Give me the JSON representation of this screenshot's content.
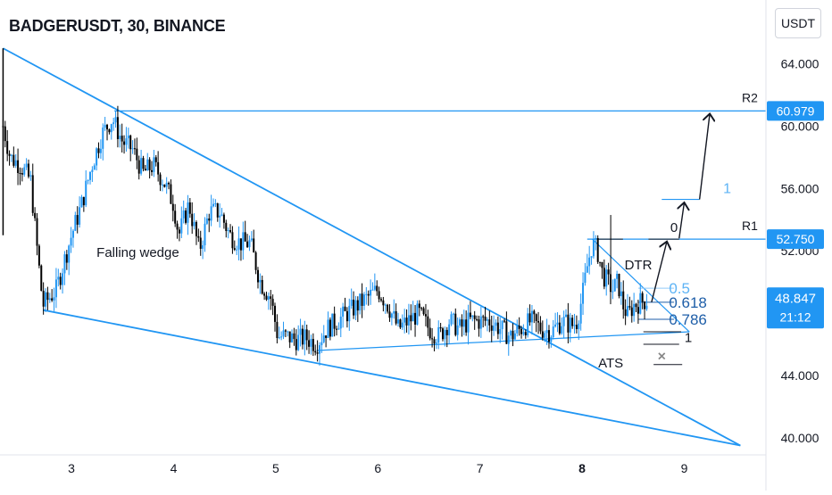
{
  "header": {
    "title": "BADGERUSDT, 30, BINANCE",
    "currency": "USDT"
  },
  "colors": {
    "line": "#2196f3",
    "label_bg": "#2196f3",
    "up": "#2196f3",
    "down": "#000000",
    "text": "#131722",
    "axis_text": "#131722",
    "fib_text": "#5db3f5",
    "fib_text_dark": "#1e5ea8"
  },
  "chart_data": {
    "type": "candlestick",
    "xlim": [
      2.3,
      9.8
    ],
    "ylim": [
      38.9,
      68.1
    ],
    "x_ticks": [
      {
        "value": 3,
        "label": "3"
      },
      {
        "value": 4,
        "label": "4"
      },
      {
        "value": 5,
        "label": "5"
      },
      {
        "value": 6,
        "label": "6"
      },
      {
        "value": 7,
        "label": "7"
      },
      {
        "value": 8,
        "label": "8",
        "bold": true
      },
      {
        "value": 9,
        "label": "9"
      }
    ],
    "y_ticks": [
      {
        "value": 40,
        "label": "40.000"
      },
      {
        "value": 44,
        "label": "44.000"
      },
      {
        "value": 48,
        "label": "48.000"
      },
      {
        "value": 52,
        "label": "52.000"
      },
      {
        "value": 56,
        "label": "56.000"
      },
      {
        "value": 60,
        "label": "60.000"
      },
      {
        "value": 64,
        "label": "64.000"
      }
    ],
    "price_labels": [
      {
        "value": 60.979,
        "label": "60.979"
      },
      {
        "value": 52.75,
        "label": "52.750"
      }
    ],
    "current_price": {
      "value": 48.847,
      "label": "48.847",
      "countdown": "21:12"
    },
    "price_path": [
      [
        2.33,
        60
      ],
      [
        2.4,
        58
      ],
      [
        2.5,
        57.5
      ],
      [
        2.6,
        56.5
      ],
      [
        2.65,
        53
      ],
      [
        2.72,
        48.5
      ],
      [
        2.85,
        49.5
      ],
      [
        3.0,
        53
      ],
      [
        3.1,
        55
      ],
      [
        3.2,
        57.5
      ],
      [
        3.3,
        59.5
      ],
      [
        3.4,
        60.5
      ],
      [
        3.5,
        59
      ],
      [
        3.6,
        58.5
      ],
      [
        3.7,
        57
      ],
      [
        3.8,
        57.5
      ],
      [
        3.9,
        56.5
      ],
      [
        4.0,
        55
      ],
      [
        4.05,
        53
      ],
      [
        4.15,
        55
      ],
      [
        4.25,
        52
      ],
      [
        4.35,
        54.5
      ],
      [
        4.45,
        54.5
      ],
      [
        4.55,
        53
      ],
      [
        4.65,
        52.5
      ],
      [
        4.75,
        52.5
      ],
      [
        4.85,
        50
      ],
      [
        4.95,
        49
      ],
      [
        5.02,
        46.5
      ],
      [
        5.1,
        46.5
      ],
      [
        5.2,
        46.3
      ],
      [
        5.3,
        46.4
      ],
      [
        5.4,
        46.0
      ],
      [
        5.5,
        47
      ],
      [
        5.6,
        47.5
      ],
      [
        5.7,
        48
      ],
      [
        5.8,
        48.5
      ],
      [
        5.9,
        49
      ],
      [
        6.0,
        49.5
      ],
      [
        6.1,
        48.5
      ],
      [
        6.2,
        47
      ],
      [
        6.3,
        47.5
      ],
      [
        6.4,
        48
      ],
      [
        6.5,
        47
      ],
      [
        6.6,
        46.5
      ],
      [
        6.7,
        47.5
      ],
      [
        6.8,
        47
      ],
      [
        6.9,
        47.5
      ],
      [
        7.0,
        47.5
      ],
      [
        7.1,
        47.5
      ],
      [
        7.2,
        47
      ],
      [
        7.3,
        46.5
      ],
      [
        7.4,
        47
      ],
      [
        7.5,
        47.5
      ],
      [
        7.6,
        47
      ],
      [
        7.7,
        46.8
      ],
      [
        7.8,
        47.5
      ],
      [
        7.9,
        47.2
      ],
      [
        7.95,
        47.5
      ],
      [
        8.0,
        49
      ],
      [
        8.05,
        51
      ],
      [
        8.1,
        52.5
      ],
      [
        8.15,
        52
      ],
      [
        8.2,
        50.5
      ],
      [
        8.3,
        49.5
      ],
      [
        8.35,
        50
      ],
      [
        8.4,
        48.5
      ],
      [
        8.45,
        47.8
      ],
      [
        8.5,
        48.5
      ],
      [
        8.6,
        48.8
      ],
      [
        8.65,
        48.85
      ]
    ],
    "annotations": {
      "R1": "R1",
      "R2": "R2",
      "falling_wedge": "Falling wedge",
      "dtr": "DTR",
      "ats": "ATS",
      "fib_levels": [
        {
          "label": "0.5",
          "value": 49.6,
          "light": true
        },
        {
          "label": "0.618",
          "value": 48.7
        },
        {
          "label": "0.786",
          "value": 47.6
        }
      ],
      "fib_one_bottom": "1",
      "fib_one_top": "1",
      "zero_label": "0",
      "cross_mark": "×"
    }
  }
}
